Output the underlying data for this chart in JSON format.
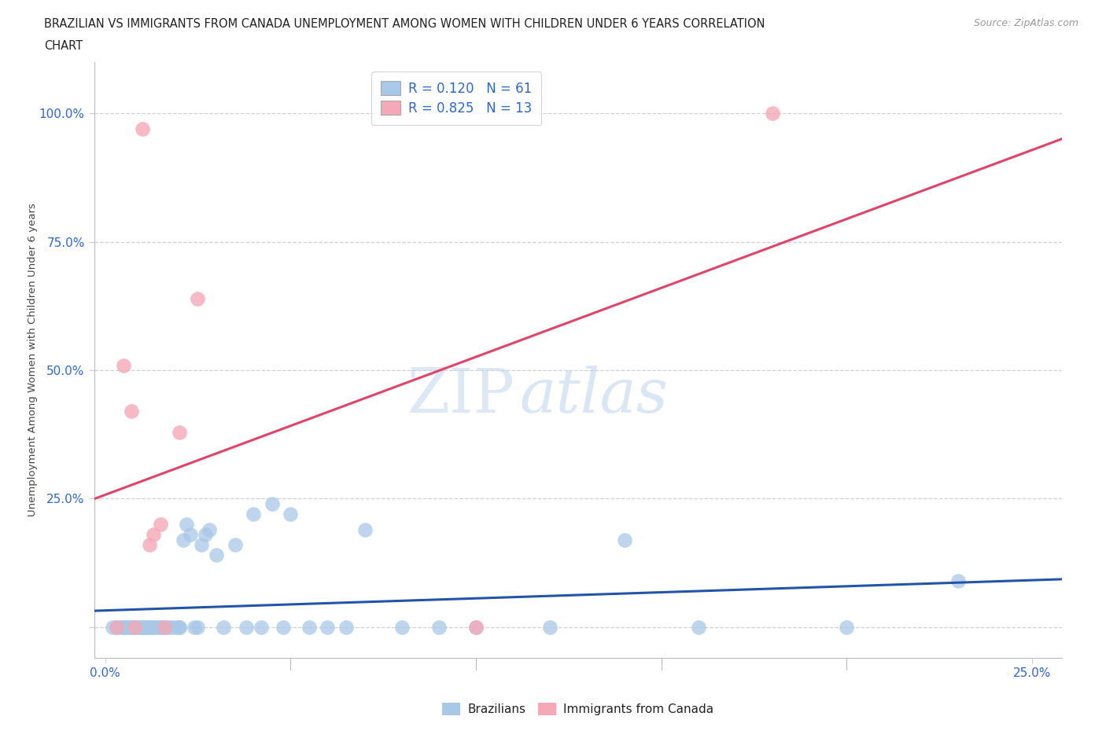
{
  "title_line1": "BRAZILIAN VS IMMIGRANTS FROM CANADA UNEMPLOYMENT AMONG WOMEN WITH CHILDREN UNDER 6 YEARS CORRELATION",
  "title_line2": "CHART",
  "source_text": "Source: ZipAtlas.com",
  "ylabel": "Unemployment Among Women with Children Under 6 years",
  "xlim": [
    -0.003,
    0.258
  ],
  "ylim": [
    -0.06,
    1.1
  ],
  "xticks": [
    0.0,
    0.05,
    0.1,
    0.15,
    0.2,
    0.25
  ],
  "yticks": [
    0.0,
    0.25,
    0.5,
    0.75,
    1.0
  ],
  "xticklabels": [
    "0.0%",
    "",
    "",
    "",
    "",
    "25.0%"
  ],
  "yticklabels": [
    "",
    "25.0%",
    "50.0%",
    "75.0%",
    "100.0%"
  ],
  "r_brazilian": 0.12,
  "n_brazilian": 61,
  "r_canada": 0.825,
  "n_canada": 13,
  "blue_color": "#a8c8e8",
  "pink_color": "#f4a8b8",
  "blue_line_color": "#2255aa",
  "pink_line_color": "#e04468",
  "legend_label_1": "Brazilians",
  "legend_label_2": "Immigrants from Canada",
  "watermark_zip": "ZIP",
  "watermark_atlas": "atlas",
  "blue_x": [
    0.002,
    0.003,
    0.004,
    0.005,
    0.005,
    0.006,
    0.006,
    0.007,
    0.007,
    0.008,
    0.008,
    0.009,
    0.009,
    0.01,
    0.01,
    0.01,
    0.01,
    0.011,
    0.011,
    0.012,
    0.012,
    0.013,
    0.013,
    0.014,
    0.015,
    0.015,
    0.016,
    0.017,
    0.018,
    0.019,
    0.02,
    0.02,
    0.021,
    0.022,
    0.023,
    0.024,
    0.025,
    0.026,
    0.027,
    0.028,
    0.03,
    0.032,
    0.035,
    0.038,
    0.04,
    0.042,
    0.045,
    0.048,
    0.05,
    0.055,
    0.06,
    0.065,
    0.07,
    0.08,
    0.09,
    0.1,
    0.12,
    0.14,
    0.16,
    0.2,
    0.23
  ],
  "blue_y": [
    0.0,
    0.0,
    0.0,
    0.0,
    0.0,
    0.0,
    0.0,
    0.0,
    0.0,
    0.0,
    0.0,
    0.0,
    0.0,
    0.0,
    0.0,
    0.0,
    0.0,
    0.0,
    0.0,
    0.0,
    0.0,
    0.0,
    0.0,
    0.0,
    0.0,
    0.0,
    0.0,
    0.0,
    0.0,
    0.0,
    0.0,
    0.0,
    0.17,
    0.2,
    0.18,
    0.0,
    0.0,
    0.16,
    0.18,
    0.19,
    0.14,
    0.0,
    0.16,
    0.0,
    0.22,
    0.0,
    0.24,
    0.0,
    0.22,
    0.0,
    0.0,
    0.0,
    0.19,
    0.0,
    0.0,
    0.0,
    0.0,
    0.17,
    0.0,
    0.0,
    0.09
  ],
  "pink_x": [
    0.003,
    0.005,
    0.007,
    0.008,
    0.01,
    0.012,
    0.013,
    0.015,
    0.016,
    0.02,
    0.025,
    0.1,
    0.18
  ],
  "pink_y": [
    0.0,
    0.51,
    0.42,
    0.0,
    0.97,
    0.16,
    0.18,
    0.2,
    0.0,
    0.38,
    0.64,
    0.0,
    1.0
  ]
}
